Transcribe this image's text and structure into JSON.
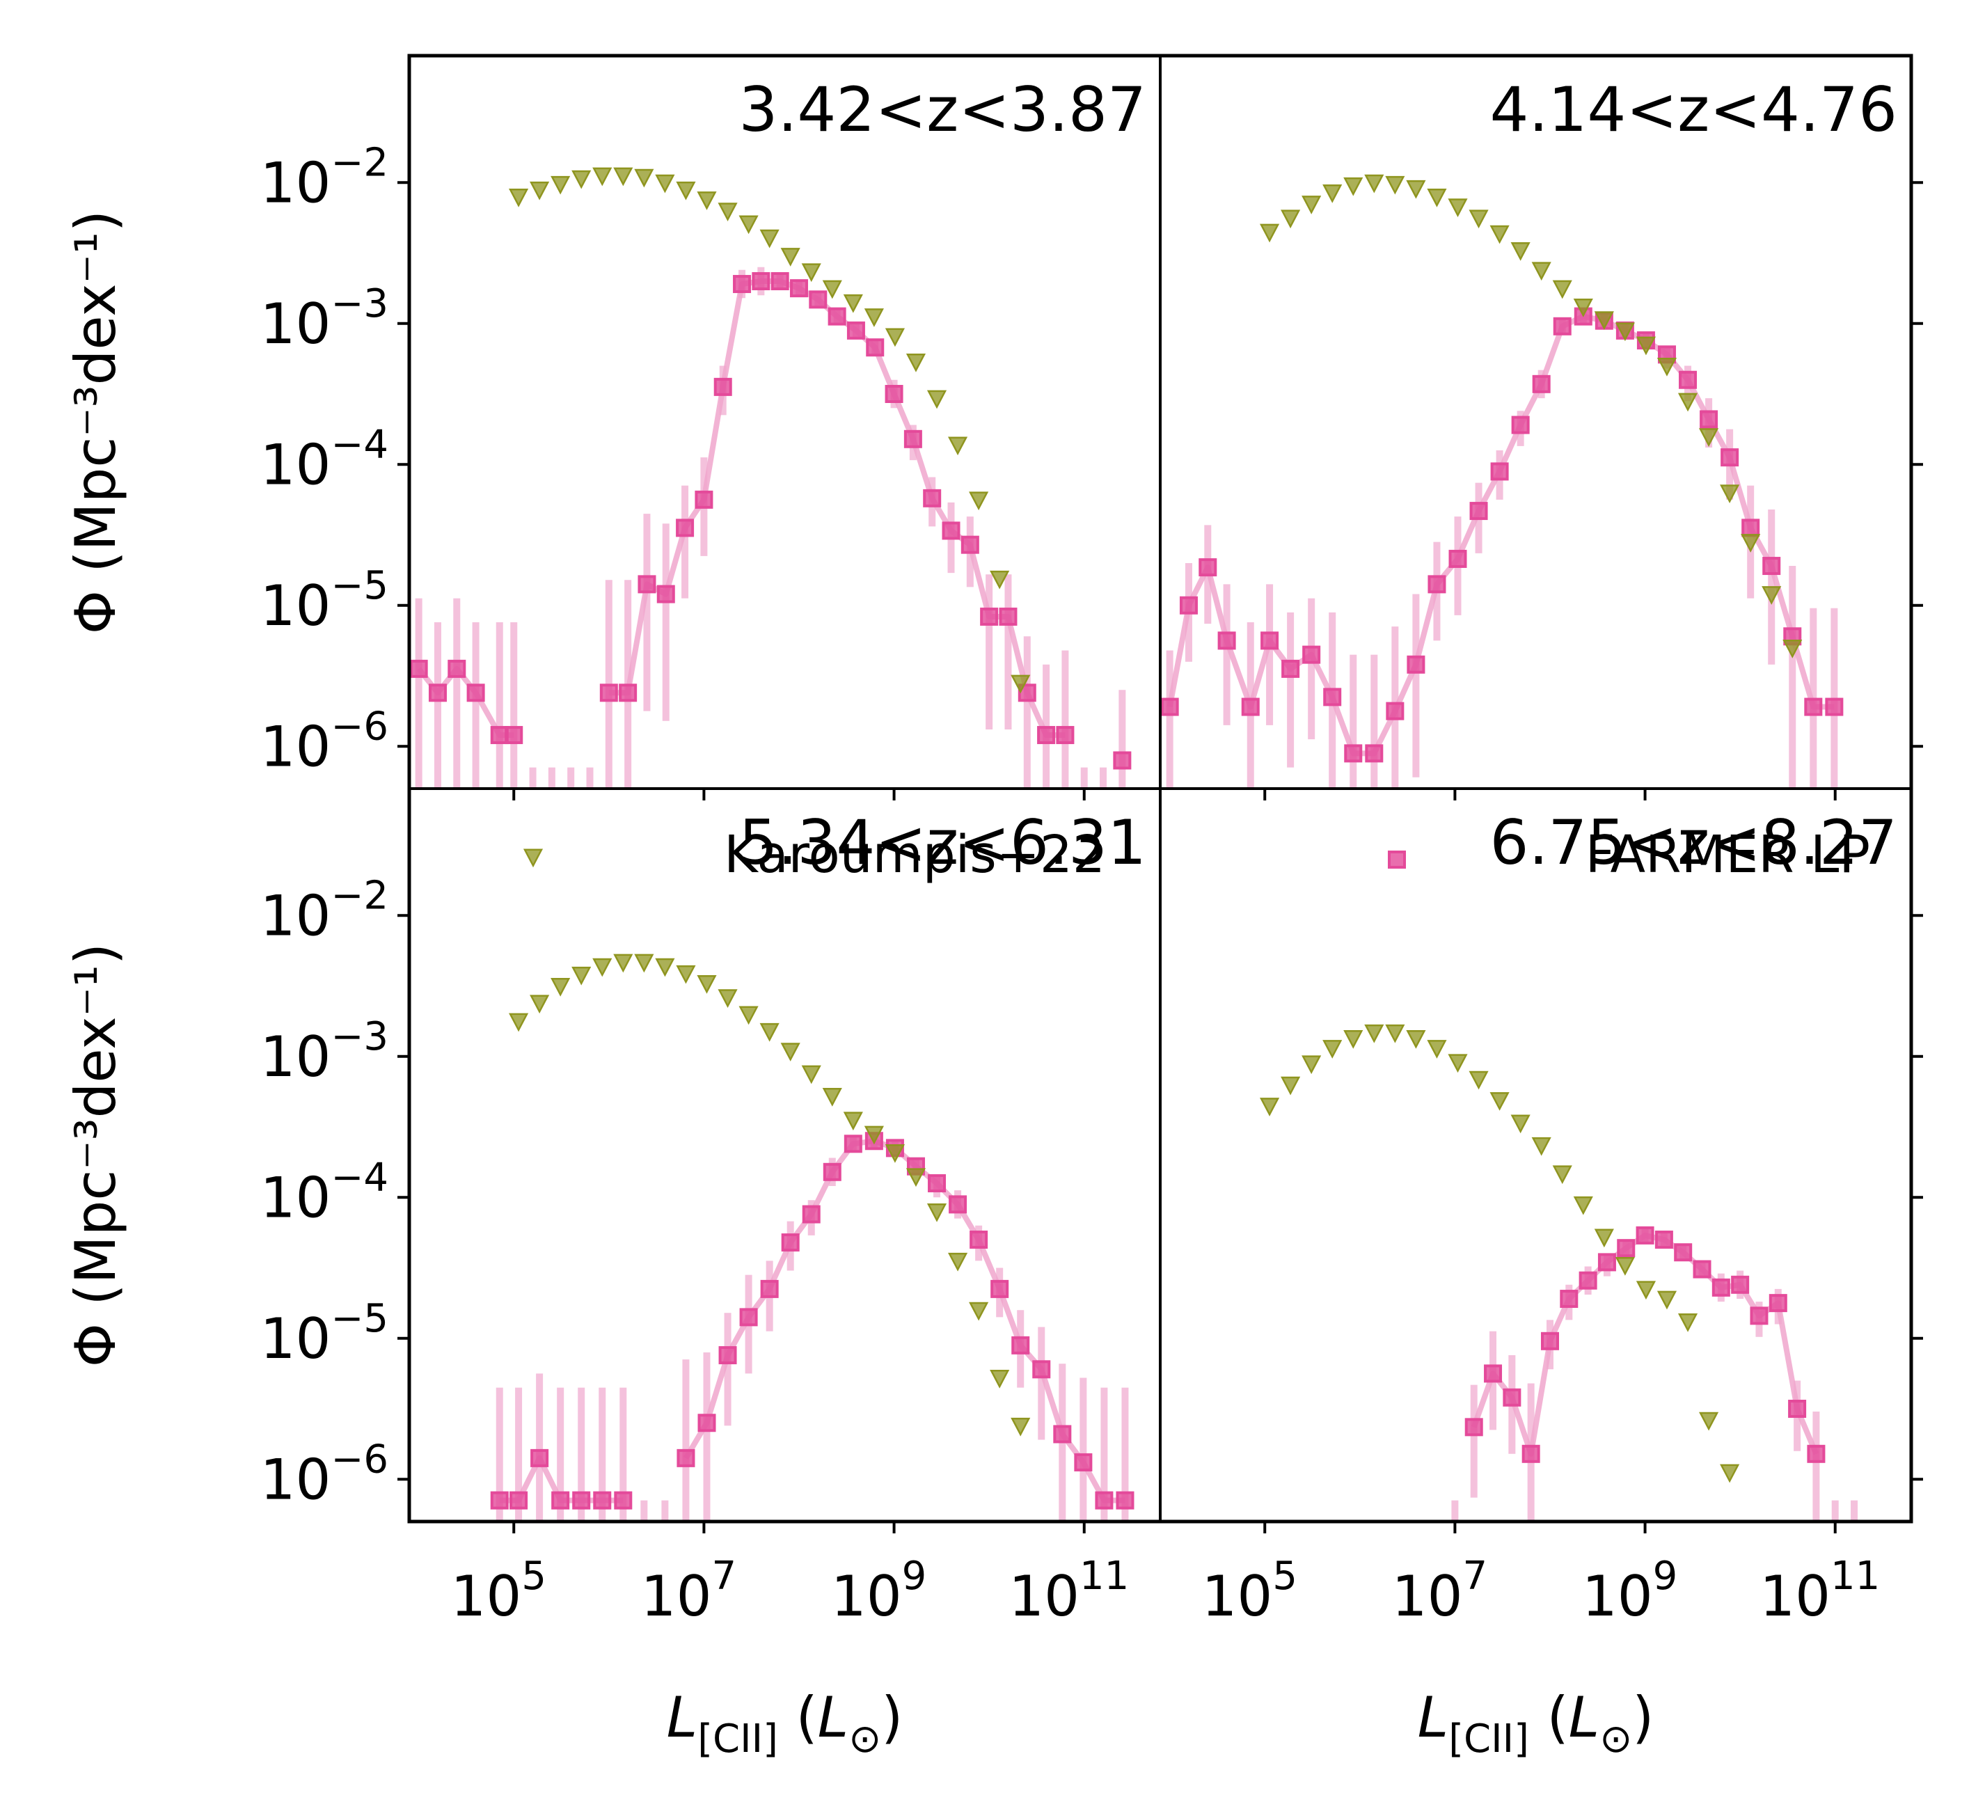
{
  "figure": {
    "ylabel": "Φ (Mpc⁻³dex⁻¹)",
    "xlabel": "L[CII] (L⊙)",
    "xlabel_main": "L",
    "xlabel_sub": "[CII]",
    "xlabel_unit_main": "L",
    "xlabel_unit_sub": "⊙",
    "ytick_labels": [
      "−2",
      "−3",
      "−4",
      "−5",
      "−6"
    ],
    "xtick_labels": [
      "5",
      "7",
      "9",
      "11"
    ],
    "tick_base": "10",
    "legend": [
      {
        "label": "Karoumpis+22",
        "panel": 2,
        "marker": "triangle-down"
      },
      {
        "label": "FARMER LP",
        "panel": 3,
        "marker": "square"
      }
    ]
  },
  "colors": {
    "karoumpis": "#8f951f",
    "farmer": "#e44a9a",
    "farmer_err": "#f0a6cd",
    "axes": "#000000"
  },
  "chart_data": [
    {
      "type": "scatter",
      "title": "3.42<z<3.87",
      "xscale": "log",
      "yscale": "log",
      "xlim_log10": [
        3.9,
        11.8
      ],
      "ylim_log10": [
        -6.3,
        -1.1
      ],
      "series": [
        {
          "name": "Karoumpis+22",
          "log10_x": [
            5.05,
            5.27,
            5.49,
            5.71,
            5.93,
            6.15,
            6.37,
            6.59,
            6.81,
            7.03,
            7.25,
            7.47,
            7.69,
            7.91,
            8.13,
            8.35,
            8.57,
            8.79,
            9.01,
            9.23,
            9.45,
            9.67,
            9.89,
            10.11,
            10.33
          ],
          "log10_y": [
            -2.1,
            -2.05,
            -2.01,
            -1.97,
            -1.95,
            -1.95,
            -1.96,
            -2.0,
            -2.05,
            -2.12,
            -2.2,
            -2.29,
            -2.39,
            -2.52,
            -2.63,
            -2.75,
            -2.85,
            -2.95,
            -3.09,
            -3.27,
            -3.53,
            -3.86,
            -4.25,
            -4.81,
            -5.55
          ]
        },
        {
          "name": "FARMER LP",
          "log10_x": [
            4.0,
            4.2,
            4.4,
            4.6,
            4.85,
            5.0,
            5.2,
            5.4,
            5.6,
            5.8,
            6.0,
            6.2,
            6.4,
            6.6,
            6.8,
            7.0,
            7.2,
            7.4,
            7.6,
            7.8,
            8.0,
            8.2,
            8.4,
            8.6,
            8.8,
            9.0,
            9.2,
            9.4,
            9.6,
            9.8,
            10.0,
            10.2,
            10.4,
            10.6,
            10.8,
            11.0,
            11.2,
            11.4
          ],
          "log10_y": [
            -5.45,
            -5.62,
            -5.45,
            -5.62,
            -5.92,
            -5.92,
            null,
            null,
            null,
            null,
            -5.62,
            -5.62,
            -4.85,
            -4.92,
            -4.45,
            -4.25,
            -3.45,
            -2.72,
            -2.7,
            -2.7,
            -2.75,
            -2.83,
            -2.95,
            -3.05,
            -3.17,
            -3.5,
            -3.82,
            -4.24,
            -4.47,
            -4.57,
            -5.08,
            -5.08,
            -5.62,
            -5.92,
            -5.92,
            null,
            null,
            -6.1
          ],
          "log10_err_lo": [
            1.5,
            1.5,
            1.5,
            1.5,
            1.5,
            1.5,
            1.5,
            1.5,
            1.5,
            1.5,
            1.5,
            1.5,
            0.9,
            0.9,
            0.5,
            0.4,
            0.2,
            0.1,
            0.1,
            0.05,
            0.05,
            0.05,
            0.05,
            0.05,
            0.05,
            0.1,
            0.15,
            0.2,
            0.3,
            0.3,
            0.8,
            0.8,
            1.5,
            1.5,
            1.5,
            1.5,
            1.5,
            1.5
          ],
          "log10_err_hi": [
            0.5,
            0.5,
            0.5,
            0.5,
            0.8,
            0.8,
            null,
            null,
            null,
            null,
            0.8,
            0.8,
            0.5,
            0.5,
            0.3,
            0.3,
            0.15,
            0.1,
            0.1,
            0.05,
            0.05,
            0.05,
            0.05,
            0.05,
            0.05,
            0.1,
            0.1,
            0.15,
            0.2,
            0.2,
            0.3,
            0.3,
            0.4,
            0.5,
            0.6,
            null,
            null,
            0.5
          ]
        }
      ]
    },
    {
      "type": "scatter",
      "title": "4.14<z<4.76",
      "xscale": "log",
      "yscale": "log",
      "xlim_log10": [
        3.9,
        11.8
      ],
      "ylim_log10": [
        -6.3,
        -1.1
      ],
      "series": [
        {
          "name": "Karoumpis+22",
          "log10_x": [
            5.05,
            5.27,
            5.49,
            5.71,
            5.93,
            6.15,
            6.37,
            6.59,
            6.81,
            7.03,
            7.25,
            7.47,
            7.69,
            7.91,
            8.13,
            8.35,
            8.57,
            8.79,
            9.01,
            9.23,
            9.45,
            9.67,
            9.89,
            10.11,
            10.33,
            10.55
          ],
          "log10_y": [
            -2.35,
            -2.25,
            -2.15,
            -2.07,
            -2.02,
            -2.0,
            -2.01,
            -2.04,
            -2.1,
            -2.17,
            -2.25,
            -2.36,
            -2.48,
            -2.62,
            -2.75,
            -2.88,
            -2.97,
            -3.05,
            -3.15,
            -3.3,
            -3.55,
            -3.8,
            -4.2,
            -4.55,
            -4.92,
            -5.3
          ]
        },
        {
          "name": "FARMER LP",
          "log10_x": [
            4.0,
            4.2,
            4.4,
            4.6,
            4.85,
            5.05,
            5.27,
            5.49,
            5.71,
            5.93,
            6.15,
            6.37,
            6.59,
            6.81,
            7.03,
            7.25,
            7.47,
            7.69,
            7.91,
            8.13,
            8.35,
            8.57,
            8.79,
            9.01,
            9.23,
            9.45,
            9.67,
            9.89,
            10.11,
            10.33,
            10.55,
            10.77,
            10.99
          ],
          "log10_y": [
            -5.72,
            -5.0,
            -4.73,
            -5.25,
            -5.72,
            -5.25,
            -5.45,
            -5.35,
            -5.65,
            -6.05,
            -6.05,
            -5.75,
            -5.42,
            -4.85,
            -4.67,
            -4.33,
            -4.05,
            -3.72,
            -3.43,
            -3.02,
            -2.95,
            -2.98,
            -3.05,
            -3.12,
            -3.22,
            -3.4,
            -3.68,
            -3.95,
            -4.45,
            -4.72,
            -5.22,
            -5.72,
            -5.72
          ],
          "log10_err_lo": [
            1.5,
            0.4,
            0.4,
            0.6,
            1.5,
            0.6,
            0.7,
            0.6,
            1.2,
            1.5,
            1.5,
            1.2,
            0.8,
            0.4,
            0.4,
            0.3,
            0.2,
            0.15,
            0.1,
            0.05,
            0.05,
            0.05,
            0.05,
            0.05,
            0.1,
            0.15,
            0.2,
            0.3,
            0.5,
            0.7,
            1.2,
            1.5,
            1.5
          ],
          "log10_err_hi": [
            0.4,
            0.3,
            0.3,
            0.4,
            0.6,
            0.4,
            0.4,
            0.4,
            0.6,
            0.7,
            0.7,
            0.6,
            0.5,
            0.3,
            0.3,
            0.2,
            0.15,
            0.1,
            0.1,
            0.05,
            0.05,
            0.05,
            0.05,
            0.05,
            0.05,
            0.1,
            0.15,
            0.2,
            0.3,
            0.4,
            0.5,
            0.7,
            0.7
          ]
        }
      ]
    },
    {
      "type": "scatter",
      "title": "5.34<z<6.31",
      "xscale": "log",
      "yscale": "log",
      "xlim_log10": [
        3.9,
        11.8
      ],
      "ylim_log10": [
        -6.3,
        -1.1
      ],
      "series": [
        {
          "name": "Karoumpis+22",
          "log10_x": [
            5.05,
            5.27,
            5.49,
            5.71,
            5.93,
            6.15,
            6.37,
            6.59,
            6.81,
            7.03,
            7.25,
            7.47,
            7.69,
            7.91,
            8.13,
            8.35,
            8.57,
            8.79,
            9.01,
            9.23,
            9.45,
            9.67,
            9.89,
            10.11,
            10.33
          ],
          "log10_y": [
            -2.75,
            -2.62,
            -2.5,
            -2.42,
            -2.36,
            -2.33,
            -2.33,
            -2.36,
            -2.41,
            -2.48,
            -2.58,
            -2.7,
            -2.82,
            -2.96,
            -3.12,
            -3.28,
            -3.45,
            -3.55,
            -3.68,
            -3.85,
            -4.1,
            -4.45,
            -4.8,
            -5.28,
            -5.62
          ]
        },
        {
          "name": "FARMER LP",
          "log10_x": [
            4.85,
            5.05,
            5.27,
            5.49,
            5.71,
            5.93,
            6.15,
            6.37,
            6.59,
            6.81,
            7.03,
            7.25,
            7.47,
            7.69,
            7.91,
            8.13,
            8.35,
            8.57,
            8.79,
            9.01,
            9.23,
            9.45,
            9.67,
            9.89,
            10.11,
            10.33,
            10.55,
            10.77,
            10.99,
            11.21,
            11.43
          ],
          "log10_y": [
            -6.15,
            -6.15,
            -5.85,
            -6.15,
            -6.15,
            -6.15,
            -6.15,
            null,
            null,
            -5.85,
            -5.6,
            -5.12,
            -4.85,
            -4.65,
            -4.32,
            -4.12,
            -3.82,
            -3.62,
            -3.6,
            -3.65,
            -3.78,
            -3.9,
            -4.05,
            -4.3,
            -4.65,
            -5.05,
            -5.22,
            -5.68,
            -5.88,
            -6.15,
            -6.15
          ],
          "log10_err_lo": [
            1.5,
            1.5,
            1.5,
            1.5,
            1.5,
            1.5,
            1.5,
            1.5,
            1.5,
            1.5,
            1.2,
            0.5,
            0.4,
            0.3,
            0.2,
            0.15,
            0.1,
            0.05,
            0.05,
            0.05,
            0.05,
            0.1,
            0.1,
            0.15,
            0.2,
            0.3,
            0.5,
            0.8,
            1.5,
            1.5,
            1.5
          ],
          "log10_err_hi": [
            0.8,
            0.8,
            0.6,
            0.8,
            0.8,
            0.8,
            0.8,
            null,
            null,
            0.7,
            0.5,
            0.3,
            0.3,
            0.2,
            0.15,
            0.1,
            0.1,
            0.05,
            0.05,
            0.05,
            0.05,
            0.05,
            0.1,
            0.1,
            0.15,
            0.25,
            0.3,
            0.5,
            0.6,
            0.8,
            0.8
          ]
        }
      ]
    },
    {
      "type": "scatter",
      "title": "6.75<z<8.27",
      "xscale": "log",
      "yscale": "log",
      "xlim_log10": [
        3.9,
        11.8
      ],
      "ylim_log10": [
        -6.3,
        -1.1
      ],
      "series": [
        {
          "name": "Karoumpis+22",
          "log10_x": [
            5.05,
            5.27,
            5.49,
            5.71,
            5.93,
            6.15,
            6.37,
            6.59,
            6.81,
            7.03,
            7.25,
            7.47,
            7.69,
            7.91,
            8.13,
            8.35,
            8.57,
            8.79,
            9.01,
            9.23,
            9.45,
            9.67,
            9.89
          ],
          "log10_y": [
            -3.35,
            -3.2,
            -3.05,
            -2.94,
            -2.87,
            -2.83,
            -2.83,
            -2.87,
            -2.94,
            -3.04,
            -3.16,
            -3.31,
            -3.47,
            -3.63,
            -3.83,
            -4.05,
            -4.28,
            -4.48,
            -4.65,
            -4.72,
            -4.88,
            -5.58,
            -5.95
          ]
        },
        {
          "name": "FARMER LP",
          "log10_x": [
            7.0,
            7.2,
            7.4,
            7.6,
            7.8,
            8.0,
            8.2,
            8.4,
            8.6,
            8.8,
            9.0,
            9.2,
            9.4,
            9.6,
            9.8,
            10.0,
            10.2,
            10.4,
            10.6,
            10.8,
            11.0,
            11.2
          ],
          "log10_y": [
            null,
            -5.63,
            -5.25,
            -5.42,
            -5.82,
            -5.02,
            -4.72,
            -4.59,
            -4.46,
            -4.36,
            -4.27,
            -4.3,
            -4.39,
            -4.51,
            -4.64,
            -4.62,
            -4.84,
            -4.75,
            -5.5,
            -5.82,
            null,
            null
          ],
          "log10_err_lo": [
            1.5,
            0.5,
            0.4,
            0.4,
            0.8,
            0.2,
            0.15,
            0.1,
            0.1,
            0.05,
            0.05,
            0.05,
            0.05,
            0.05,
            0.1,
            0.1,
            0.15,
            0.15,
            0.3,
            0.5,
            1.5,
            1.5
          ],
          "log10_err_hi": [
            null,
            0.3,
            0.3,
            0.3,
            0.5,
            0.15,
            0.1,
            0.1,
            0.05,
            0.05,
            0.05,
            0.05,
            0.05,
            0.05,
            0.1,
            0.1,
            0.1,
            0.1,
            0.2,
            0.3,
            null,
            null
          ]
        }
      ]
    }
  ]
}
